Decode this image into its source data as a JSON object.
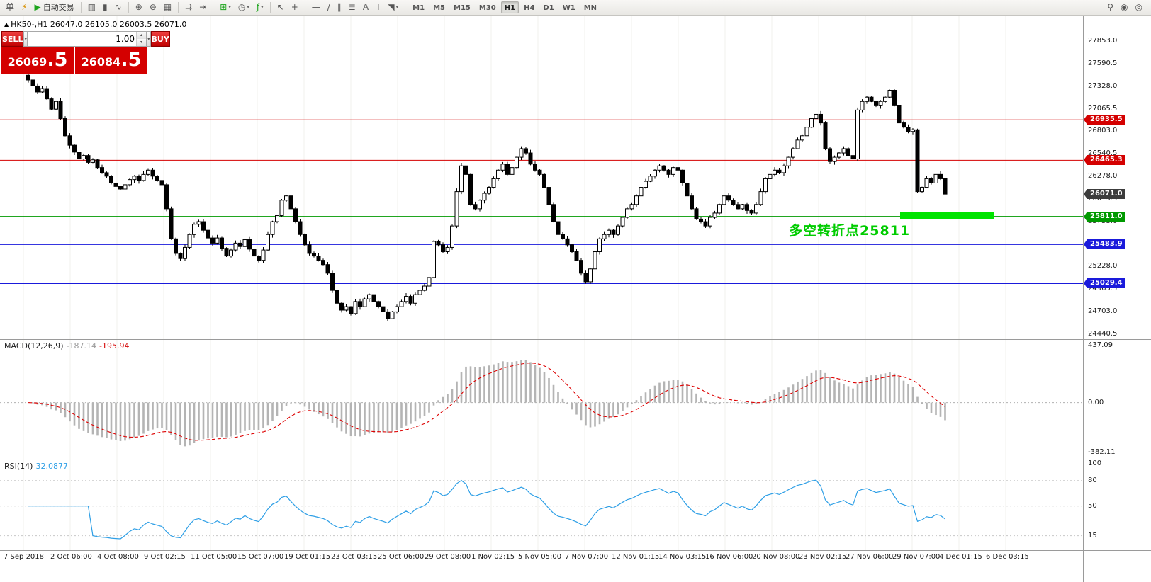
{
  "colors": {
    "up_candle": "#ffffff",
    "down_candle": "#000000",
    "macd_hist": "#b4b4b4",
    "macd_signal": "#dd0000",
    "rsi_line": "#2e9fe6",
    "annotation_green": "#00cc00",
    "highlight_green": "#00e400",
    "hline_red": "#d40000",
    "hline_green": "#009900",
    "hline_blue": "#1a1adb",
    "price_panel_red": "#d40000"
  },
  "toolbar": {
    "dropdown_glyph": "▾",
    "items": [
      {
        "t": "btn",
        "name": "new-order-button",
        "glyph": "单"
      },
      {
        "t": "btn",
        "name": "mql-market-button",
        "glyph": "⚡",
        "color": "#d89000"
      },
      {
        "t": "btn",
        "name": "autotrading-button",
        "glyph": "▶",
        "color": "#1ca41c",
        "label": "自动交易"
      },
      {
        "t": "sep"
      },
      {
        "t": "btn",
        "name": "bar-chart-button",
        "glyph": "▥"
      },
      {
        "t": "btn",
        "name": "candlestick-chart-button",
        "glyph": "▮"
      },
      {
        "t": "btn",
        "name": "line-chart-button",
        "glyph": "∿"
      },
      {
        "t": "sep"
      },
      {
        "t": "btn",
        "name": "zoom-in-button",
        "glyph": "⊕"
      },
      {
        "t": "btn",
        "name": "zoom-out-button",
        "glyph": "⊖"
      },
      {
        "t": "btn",
        "name": "tile-windows-button",
        "glyph": "▦"
      },
      {
        "t": "sep"
      },
      {
        "t": "btn",
        "name": "auto-scroll-button",
        "glyph": "⇉"
      },
      {
        "t": "btn",
        "name": "chart-shift-button",
        "glyph": "⇥"
      },
      {
        "t": "sep"
      },
      {
        "t": "btn",
        "name": "new-chart-button",
        "glyph": "⊞",
        "color": "#1ca41c",
        "dd": true
      },
      {
        "t": "btn",
        "name": "profiles-button",
        "glyph": "◷",
        "dd": true
      },
      {
        "t": "btn",
        "name": "indicators-button",
        "glyph": "ƒ",
        "color": "#1ca41c",
        "dd": true
      },
      {
        "t": "sep"
      },
      {
        "t": "btn",
        "name": "cursor-button",
        "glyph": "↖"
      },
      {
        "t": "btn",
        "name": "crosshair-button",
        "glyph": "+"
      },
      {
        "t": "sep"
      },
      {
        "t": "btn",
        "name": "horizontal-line-button",
        "glyph": "—"
      },
      {
        "t": "btn",
        "name": "trendline-button",
        "glyph": "∕"
      },
      {
        "t": "btn",
        "name": "equidistant-channel-button",
        "glyph": "∥"
      },
      {
        "t": "btn",
        "name": "fibonacci-button",
        "glyph": "≣"
      },
      {
        "t": "btn",
        "name": "text-button",
        "glyph": "A"
      },
      {
        "t": "btn",
        "name": "text-label-button",
        "glyph": "T"
      },
      {
        "t": "btn",
        "name": "arrows-button",
        "glyph": "◥",
        "dd": true
      },
      {
        "t": "sep"
      }
    ],
    "timeframes": [
      "M1",
      "M5",
      "M15",
      "M30",
      "H1",
      "H4",
      "D1",
      "W1",
      "MN"
    ],
    "active_timeframe": "H1",
    "right_items": [
      {
        "name": "search-icon",
        "glyph": "⚲"
      },
      {
        "name": "alerts-icon",
        "glyph": "◉"
      },
      {
        "name": "community-icon",
        "glyph": "◎"
      }
    ]
  },
  "window": {
    "symbol_marker_glyph": "▲",
    "symbol_info": "HK50-,H1 26047.0 26105.0 26003.5 26071.0"
  },
  "one_click": {
    "sell_label": "SELL",
    "buy_label": "BUY",
    "volume": "1.00",
    "dropdown_glyph": "▾",
    "spin_up_glyph": "▴",
    "spin_down_glyph": "▾",
    "sell_price_main": "26069",
    "sell_price_frac": ".5",
    "buy_price_main": "26084",
    "buy_price_frac": ".5"
  },
  "indicators": {
    "macd": {
      "name_label": "MACD(12,26,9)",
      "value_main": "-187.14",
      "value_signal": "-195.94",
      "params": [
        12,
        26,
        9
      ]
    },
    "rsi": {
      "name_label": "RSI(14)",
      "value": "32.0877",
      "period": 14
    }
  },
  "annotation": {
    "text": "多空转折点25811"
  },
  "chart_data": [
    {
      "type": "candlestick",
      "symbol": "HK50-",
      "timeframe": "H1",
      "last_ohlc": {
        "open": 26047.0,
        "high": 26105.0,
        "low": 26003.5,
        "close": 26071.0
      },
      "y_range": [
        24390,
        28150
      ],
      "price_axis_labels": [
        "27853.0",
        "27590.5",
        "27328.0",
        "27065.5",
        "26803.0",
        "26540.5",
        "26278.0",
        "26015.5",
        "25753.0",
        "25490.5",
        "25228.0",
        "24965.5",
        "24703.0",
        "24440.5"
      ],
      "time_axis_labels": [
        "7 Sep 2018",
        "2 Oct 06:00",
        "4 Oct 08:00",
        "9 Oct 02:15",
        "11 Oct 05:00",
        "15 Oct 07:00",
        "19 Oct 01:15",
        "23 Oct 03:15",
        "25 Oct 06:00",
        "29 Oct 08:00",
        "1 Nov 02:15",
        "5 Nov 05:00",
        "7 Nov 07:00",
        "12 Nov 01:15",
        "14 Nov 03:15",
        "16 Nov 06:00",
        "20 Nov 08:00",
        "23 Nov 02:15",
        "27 Nov 06:00",
        "29 Nov 07:00",
        "4 Dec 01:15",
        "6 Dec 03:15"
      ],
      "closes": [
        27400,
        27330,
        27260,
        27300,
        27180,
        27060,
        27150,
        26950,
        26750,
        26640,
        26560,
        26480,
        26520,
        26440,
        26470,
        26380,
        26320,
        26280,
        26200,
        26160,
        26130,
        26180,
        26240,
        26280,
        26230,
        26300,
        26350,
        26280,
        26230,
        26180,
        25900,
        25550,
        25380,
        25320,
        25450,
        25600,
        25720,
        25750,
        25650,
        25560,
        25500,
        25560,
        25440,
        25350,
        25420,
        25500,
        25460,
        25540,
        25430,
        25350,
        25300,
        25420,
        25600,
        25750,
        25820,
        26000,
        26050,
        25900,
        25750,
        25600,
        25480,
        25380,
        25350,
        25300,
        25250,
        25150,
        24950,
        24800,
        24720,
        24760,
        24680,
        24820,
        24760,
        24850,
        24900,
        24820,
        24760,
        24700,
        24620,
        24700,
        24760,
        24820,
        24880,
        24800,
        24900,
        24950,
        25000,
        25100,
        25520,
        25480,
        25400,
        25450,
        25700,
        26100,
        26400,
        26300,
        25950,
        25900,
        26000,
        26080,
        26150,
        26250,
        26350,
        26420,
        26300,
        26380,
        26500,
        26600,
        26550,
        26420,
        26350,
        26300,
        26150,
        25950,
        25750,
        25600,
        25550,
        25480,
        25400,
        25300,
        25150,
        25050,
        25200,
        25400,
        25550,
        25600,
        25650,
        25600,
        25700,
        25800,
        25900,
        25950,
        26050,
        26150,
        26220,
        26280,
        26350,
        26400,
        26350,
        26300,
        26380,
        26350,
        26200,
        26050,
        25900,
        25780,
        25750,
        25700,
        25800,
        25850,
        25950,
        26050,
        26000,
        25950,
        25900,
        25950,
        25880,
        25850,
        25950,
        26100,
        26250,
        26300,
        26350,
        26320,
        26400,
        26500,
        26600,
        26700,
        26750,
        26850,
        26950,
        27000,
        26900,
        26600,
        26450,
        26500,
        26550,
        26600,
        26520,
        26480,
        27050,
        27150,
        27200,
        27150,
        27100,
        27150,
        27200,
        27280,
        27100,
        26900,
        26850,
        26800,
        26820,
        26100,
        26150,
        26250,
        26200,
        26300,
        26250,
        26071
      ],
      "horizontal_lines": [
        {
          "price": 26935.5,
          "color": "#d40000",
          "label": "26935.5"
        },
        {
          "price": 26465.3,
          "color": "#d40000",
          "label": "26465.3"
        },
        {
          "price": 25811.0,
          "color": "#009900",
          "label": "25811.0"
        },
        {
          "price": 25483.9,
          "color": "#1a1adb",
          "label": "25483.9"
        },
        {
          "price": 25029.4,
          "color": "#1a1adb",
          "label": "25029.4"
        }
      ],
      "current_price_tag": {
        "price": 26071.0,
        "label": "26071.0",
        "color": "#3c3c3c"
      },
      "highlight_bar": {
        "price": 25820,
        "x_from": 1270,
        "x_to": 1402,
        "thickness": 10
      },
      "annotation": "多空转折点25811"
    },
    {
      "type": "bar",
      "name": "MACD",
      "params": [
        12,
        26,
        9
      ],
      "current_values": [
        -187.14,
        -195.94
      ],
      "y_axis_labels": [
        "437.09",
        "0.00",
        "-382.11"
      ],
      "y_range": [
        -430,
        480
      ],
      "derived_from": "chart_data[0].closes"
    },
    {
      "type": "line",
      "name": "RSI",
      "period": 14,
      "current_value": 32.0877,
      "y_axis_labels": [
        "100",
        "80",
        "50",
        "15"
      ],
      "level_lines": [
        80,
        50,
        15
      ],
      "y_range": [
        -2,
        104
      ],
      "derived_from": "chart_data[0].closes"
    }
  ]
}
